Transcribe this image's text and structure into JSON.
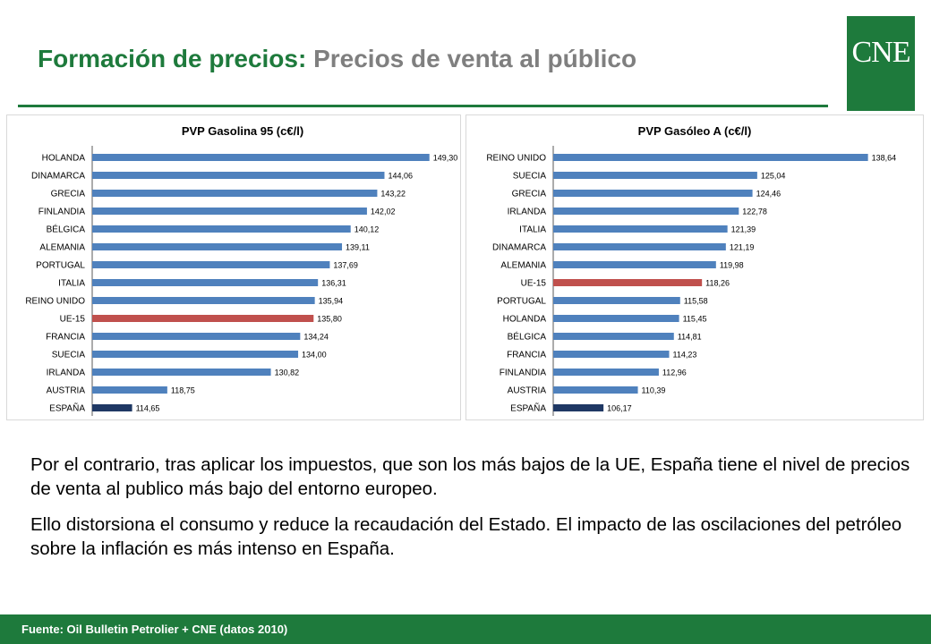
{
  "header": {
    "title_main": "Formación de precios:",
    "title_sub": "Precios de venta al público",
    "logo_text": "CNE"
  },
  "colors": {
    "brand_green": "#1e7a3c",
    "bar_default": "#4f81bd",
    "bar_eu15": "#c0504d",
    "bar_spain": "#1f3864"
  },
  "chart_data": [
    {
      "type": "bar",
      "orientation": "horizontal",
      "title": "PVP Gasolina 95 (c€/l)",
      "categories": [
        "HOLANDA",
        "DINAMARCA",
        "GRECIA",
        "FINLANDIA",
        "BÉLGICA",
        "ALEMANIA",
        "PORTUGAL",
        "ITALIA",
        "REINO UNIDO",
        "UE-15",
        "FRANCIA",
        "SUECIA",
        "IRLANDA",
        "AUSTRIA",
        "ESPAÑA"
      ],
      "values": [
        149.3,
        144.06,
        143.22,
        142.02,
        140.12,
        139.11,
        137.69,
        136.31,
        135.94,
        135.8,
        134.24,
        134.0,
        130.82,
        118.75,
        114.65
      ],
      "value_labels": [
        "149,30",
        "144,06",
        "143,22",
        "142,02",
        "140,12",
        "139,11",
        "137,69",
        "136,31",
        "135,94",
        "135,80",
        "134,24",
        "134,00",
        "130,82",
        "118,75",
        "114,65"
      ],
      "highlight": {
        "UE-15": "#c0504d",
        "ESPAÑA": "#1f3864"
      },
      "xlim": [
        110,
        151
      ]
    },
    {
      "type": "bar",
      "orientation": "horizontal",
      "title": "PVP Gasóleo A (c€/l)",
      "categories": [
        "REINO UNIDO",
        "SUECIA",
        "GRECIA",
        "IRLANDA",
        "ITALIA",
        "DINAMARCA",
        "ALEMANIA",
        "UE-15",
        "PORTUGAL",
        "HOLANDA",
        "BÉLGICA",
        "FRANCIA",
        "FINLANDIA",
        "AUSTRIA",
        "ESPAÑA"
      ],
      "values": [
        138.64,
        125.04,
        124.46,
        122.78,
        121.39,
        121.19,
        119.98,
        118.26,
        115.58,
        115.45,
        114.81,
        114.23,
        112.96,
        110.39,
        106.17
      ],
      "value_labels": [
        "138,64",
        "125,04",
        "124,46",
        "122,78",
        "121,39",
        "121,19",
        "119,98",
        "118,26",
        "115,58",
        "115,45",
        "114,81",
        "114,23",
        "112,96",
        "110,39",
        "106,17"
      ],
      "highlight": {
        "UE-15": "#c0504d",
        "ESPAÑA": "#1f3864"
      },
      "xlim": [
        100,
        140
      ]
    }
  ],
  "body": {
    "paragraph1": "Por el contrario, tras aplicar los impuestos, que son los más bajos de la UE, España tiene el nivel de precios de venta al publico más bajo del entorno europeo.",
    "paragraph2": "Ello distorsiona el consumo y reduce la recaudación del Estado. El impacto de las oscilaciones del petróleo sobre la inflación es más intenso en España."
  },
  "footer": {
    "source": "Fuente: Oil Bulletin Petrolier + CNE (datos 2010)"
  }
}
